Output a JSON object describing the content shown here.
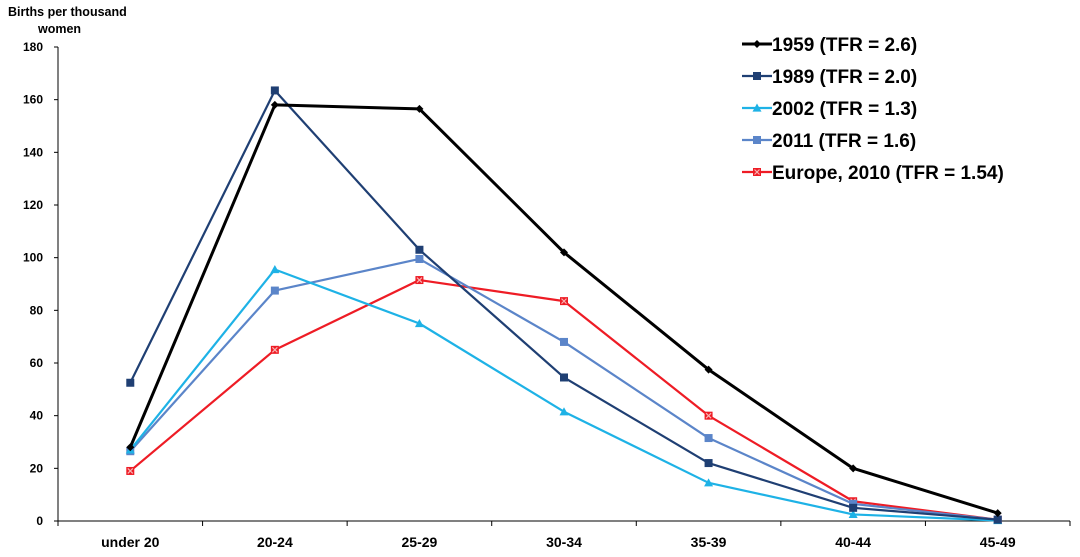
{
  "chart_data": {
    "type": "line",
    "ylabel_lines": [
      "Births per thousand",
      "women"
    ],
    "xlabel": "",
    "categories": [
      "under 20",
      "20-24",
      "25-29",
      "30-34",
      "35-39",
      "40-44",
      "45-49"
    ],
    "ylim": [
      0,
      180
    ],
    "yticks": [
      0,
      20,
      40,
      60,
      80,
      100,
      120,
      140,
      160,
      180
    ],
    "grid": false,
    "legend_position": "top-right",
    "series": [
      {
        "name": "1959 (TFR = 2.6)",
        "color": "#000000",
        "marker": "diamond",
        "values": [
          28,
          158,
          156.5,
          102,
          57.5,
          20,
          3
        ]
      },
      {
        "name": "1989 (TFR = 2.0)",
        "color": "#1F3F73",
        "marker": "square",
        "values": [
          52.5,
          163.5,
          103,
          54.5,
          22,
          5,
          0.5
        ]
      },
      {
        "name": "2002 (TFR = 1.3)",
        "color": "#1EB2E6",
        "marker": "triangle",
        "values": [
          27,
          95.5,
          75,
          41.5,
          14.5,
          2.5,
          0.2
        ]
      },
      {
        "name": "2011 (TFR = 1.6)",
        "color": "#5B85C9",
        "marker": "square",
        "values": [
          26.5,
          87.5,
          99.5,
          68,
          31.5,
          6.5,
          0.5
        ]
      },
      {
        "name": "Europe, 2010 (TFR = 1.54)",
        "color": "#EE1C25",
        "marker": "xsquare",
        "values": [
          19,
          65,
          91.5,
          83.5,
          40,
          7.5,
          0.5
        ]
      }
    ]
  }
}
